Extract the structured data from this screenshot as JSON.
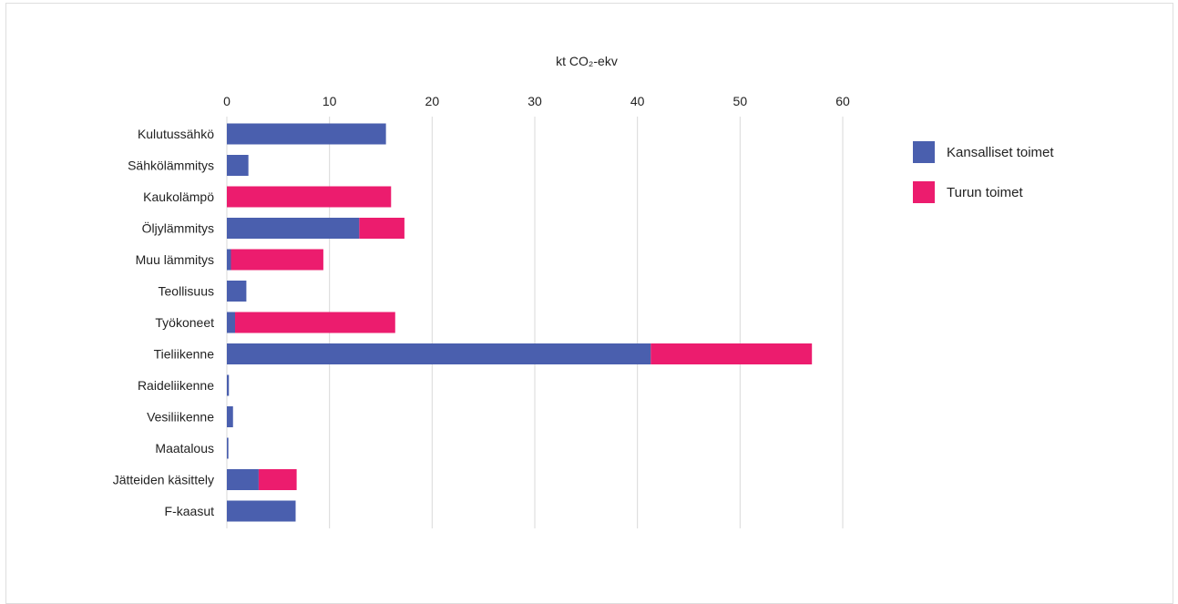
{
  "chart_data": {
    "type": "bar",
    "orientation": "horizontal",
    "stacked": true,
    "xlabel": "kt CO₂-ekv",
    "xlim": [
      0,
      60
    ],
    "xticks": [
      0,
      10,
      20,
      30,
      40,
      50,
      60
    ],
    "axis_position": "top",
    "grid": true,
    "legend_position": "right",
    "categories": [
      "Kulutussähkö",
      "Sähkölämmitys",
      "Kaukolämpö",
      "Öljylämmitys",
      "Muu lämmitys",
      "Teollisuus",
      "Työkoneet",
      "Tieliikenne",
      "Raideliikenne",
      "Vesiliikenne",
      "Maatalous",
      "Jätteiden käsittely",
      "F-kaasut"
    ],
    "series": [
      {
        "name": "Kansalliset toimet",
        "color": "#4a5fae",
        "values": [
          15.5,
          2.1,
          0,
          12.9,
          0.4,
          1.9,
          0.8,
          41.3,
          0.2,
          0.6,
          0.15,
          3.1,
          6.7
        ]
      },
      {
        "name": "Turun toimet",
        "color": "#ec1c6e",
        "values": [
          0,
          0,
          16.0,
          4.4,
          9.0,
          0,
          15.6,
          15.7,
          0,
          0,
          0,
          3.7,
          0
        ]
      }
    ]
  }
}
